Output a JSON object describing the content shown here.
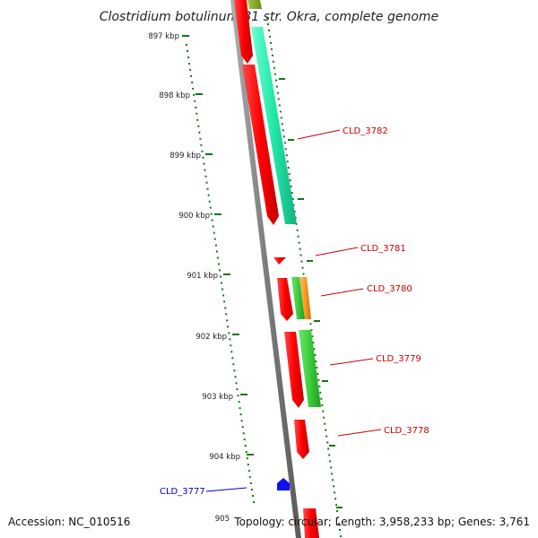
{
  "title": "Clostridium botulinum B1 str. Okra, complete genome",
  "footer": {
    "accession": "Accession: NC_010516",
    "summary": "Topology: circular; Length: 3,958,233 bp; Genes: 3,761"
  },
  "ticks": [
    "897 kbp",
    "898 kbp",
    "899 kbp",
    "900 kbp",
    "901 kbp",
    "902 kbp",
    "903 kbp",
    "904 kbp",
    "905"
  ],
  "gene_labels": [
    {
      "id": "CLD_3782",
      "color": "#cc0000"
    },
    {
      "id": "CLD_3781",
      "color": "#cc0000"
    },
    {
      "id": "CLD_3780",
      "color": "#cc0000"
    },
    {
      "id": "CLD_3779",
      "color": "#cc0000"
    },
    {
      "id": "CLD_3778",
      "color": "#cc0000"
    },
    {
      "id": "CLD_3777",
      "color": "#0000cc"
    }
  ],
  "colors": {
    "backbone": "#888888",
    "ticks": "#117711",
    "cds": "#ff0000",
    "cog_teal": "#22e6a8",
    "cog_green": "#3ccc3c",
    "cog_orange": "#ff9922",
    "cog_olive": "#88aa22",
    "rna": "#1010ee"
  }
}
